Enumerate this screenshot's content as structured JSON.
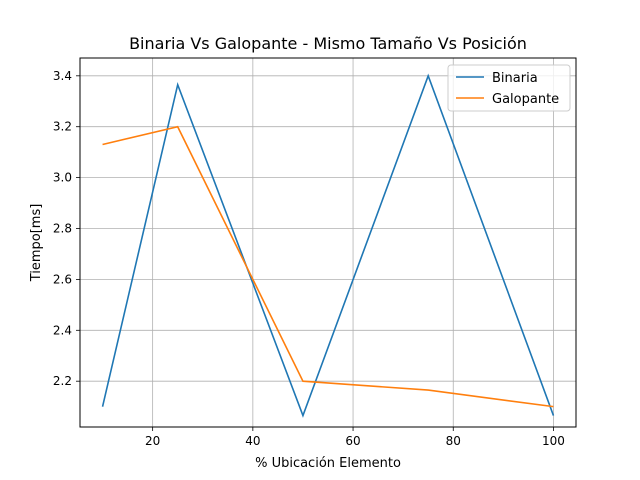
{
  "chart_data": {
    "type": "line",
    "title": "Binaria Vs Galopante - Mismo Tamaño Vs Posición",
    "xlabel": "% Ubicación Elemento",
    "ylabel": "Tiempo[ms]",
    "xlim": [
      5.5,
      104.5
    ],
    "ylim": [
      2.02,
      3.47
    ],
    "xticks": [
      20,
      40,
      60,
      80,
      100
    ],
    "yticks": [
      2.2,
      2.4,
      2.6,
      2.8,
      3.0,
      3.2,
      3.4
    ],
    "grid": true,
    "legend_position": "top-right",
    "x": [
      10,
      25,
      50,
      75,
      100
    ],
    "series": [
      {
        "name": "Binaria",
        "color": "#1f77b4",
        "values": [
          2.1,
          3.365,
          2.065,
          3.4,
          2.065
        ]
      },
      {
        "name": "Galopante",
        "color": "#ff7f0e",
        "values": [
          3.13,
          3.2,
          2.2,
          2.165,
          2.1
        ]
      }
    ]
  }
}
